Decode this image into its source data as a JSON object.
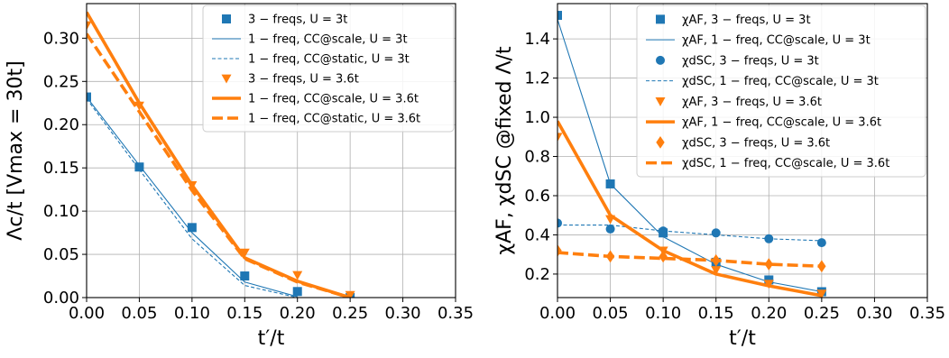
{
  "colors": {
    "blue": "#1f77b4",
    "orange": "#ff7f0e",
    "grid": "#b0b0b0"
  },
  "chart_data": [
    {
      "type": "line",
      "xlabel": "t′/t",
      "ylabel": "Λc/t [Vmax = 30t]",
      "xlim": [
        0.0,
        0.35
      ],
      "ylim": [
        0.0,
        0.34
      ],
      "xticks": [
        "0.00",
        "0.05",
        "0.10",
        "0.15",
        "0.20",
        "0.25",
        "0.30",
        "0.35"
      ],
      "yticks": [
        "0.00",
        "0.05",
        "0.10",
        "0.15",
        "0.20",
        "0.25",
        "0.30"
      ],
      "grid": true,
      "legend_position": "top-right",
      "series": [
        {
          "name": "3 − freqs, U = 3t",
          "color": "#1f77b4",
          "style": "markers",
          "marker": "square",
          "x": [
            0.0,
            0.05,
            0.1,
            0.15,
            0.2,
            0.25
          ],
          "y": [
            0.232,
            0.151,
            0.081,
            0.025,
            0.007,
            0.0
          ]
        },
        {
          "name": "1 − freq, CC@scale, U = 3t",
          "color": "#1f77b4",
          "style": "thin-solid",
          "x": [
            0.0,
            0.05,
            0.1,
            0.15,
            0.2
          ],
          "y": [
            0.232,
            0.153,
            0.075,
            0.018,
            0.001
          ]
        },
        {
          "name": "1 − freq, CC@static, U = 3t",
          "color": "#1f77b4",
          "style": "thin-dashed",
          "x": [
            0.0,
            0.05,
            0.1,
            0.15,
            0.2
          ],
          "y": [
            0.23,
            0.148,
            0.068,
            0.014,
            0.0
          ]
        },
        {
          "name": "3 − freqs, U = 3.6t",
          "color": "#ff7f0e",
          "style": "markers",
          "marker": "triangle-down",
          "x": [
            0.0,
            0.05,
            0.1,
            0.15,
            0.2,
            0.25
          ],
          "y": [
            0.315,
            0.222,
            0.13,
            0.052,
            0.026,
            0.003
          ]
        },
        {
          "name": "1 − freq, CC@scale, U = 3.6t",
          "color": "#ff7f0e",
          "style": "thick-solid",
          "x": [
            0.0,
            0.05,
            0.1,
            0.15,
            0.2,
            0.25
          ],
          "y": [
            0.33,
            0.225,
            0.13,
            0.046,
            0.019,
            0.0
          ]
        },
        {
          "name": "1 − freq, CC@static, U = 3.6t",
          "color": "#ff7f0e",
          "style": "thick-dashed",
          "x": [
            0.0,
            0.05,
            0.1,
            0.15,
            0.2,
            0.25
          ],
          "y": [
            0.305,
            0.215,
            0.124,
            0.045,
            0.018,
            0.0
          ]
        }
      ]
    },
    {
      "type": "line",
      "xlabel": "t′/t",
      "ylabel": "χAF, χdSC @fixed Λ/t",
      "xlim": [
        0.0,
        0.35
      ],
      "ylim": [
        0.08,
        1.58
      ],
      "xticks": [
        "0.00",
        "0.05",
        "0.10",
        "0.15",
        "0.20",
        "0.25",
        "0.30",
        "0.35"
      ],
      "yticks": [
        "0.2",
        "0.4",
        "0.6",
        "0.8",
        "1.0",
        "1.2",
        "1.4"
      ],
      "grid": true,
      "legend_position": "top-right",
      "series": [
        {
          "name": "χAF, 3 − freqs, U = 3t",
          "color": "#1f77b4",
          "style": "markers",
          "marker": "square",
          "x": [
            0.0,
            0.05,
            0.1,
            0.15,
            0.2,
            0.25
          ],
          "y": [
            1.52,
            0.66,
            0.41,
            0.26,
            0.17,
            0.11
          ]
        },
        {
          "name": "χAF, 1 − freq, CC@scale, U = 3t",
          "color": "#1f77b4",
          "style": "thin-solid",
          "x": [
            0.0,
            0.05,
            0.1,
            0.15,
            0.2,
            0.25
          ],
          "y": [
            1.5,
            0.66,
            0.39,
            0.25,
            0.16,
            0.11
          ]
        },
        {
          "name": "χdSC, 3 − freqs, U = 3t",
          "color": "#1f77b4",
          "style": "markers",
          "marker": "circle",
          "x": [
            0.0,
            0.05,
            0.1,
            0.15,
            0.2,
            0.25
          ],
          "y": [
            0.46,
            0.43,
            0.42,
            0.41,
            0.38,
            0.36
          ]
        },
        {
          "name": "χdSC, 1 − freq, CC@scale, U = 3t",
          "color": "#1f77b4",
          "style": "thin-dashed",
          "x": [
            0.0,
            0.05,
            0.1,
            0.15,
            0.2,
            0.25
          ],
          "y": [
            0.45,
            0.45,
            0.42,
            0.4,
            0.38,
            0.37
          ]
        },
        {
          "name": "χAF, 3 − freqs, U = 3.6t",
          "color": "#ff7f0e",
          "style": "markers",
          "marker": "triangle-down",
          "x": [
            0.0,
            0.05,
            0.1,
            0.15,
            0.2,
            0.25
          ],
          "y": [
            0.9,
            0.48,
            0.32,
            0.22,
            0.15,
            0.1
          ]
        },
        {
          "name": "χAF, 1 − freq, CC@scale, U = 3.6t",
          "color": "#ff7f0e",
          "style": "thick-solid",
          "x": [
            0.0,
            0.05,
            0.1,
            0.15,
            0.2,
            0.25
          ],
          "y": [
            0.98,
            0.5,
            0.32,
            0.2,
            0.14,
            0.09
          ]
        },
        {
          "name": "χdSC, 3 − freqs, U = 3.6t",
          "color": "#ff7f0e",
          "style": "markers",
          "marker": "diamond",
          "x": [
            0.0,
            0.05,
            0.1,
            0.15,
            0.2,
            0.25
          ],
          "y": [
            0.32,
            0.29,
            0.29,
            0.27,
            0.25,
            0.24
          ]
        },
        {
          "name": "χdSC, 1 − freq, CC@scale, U = 3.6t",
          "color": "#ff7f0e",
          "style": "thick-dashed",
          "x": [
            0.0,
            0.05,
            0.1,
            0.15,
            0.2,
            0.25
          ],
          "y": [
            0.31,
            0.29,
            0.28,
            0.27,
            0.25,
            0.24
          ]
        }
      ]
    }
  ]
}
